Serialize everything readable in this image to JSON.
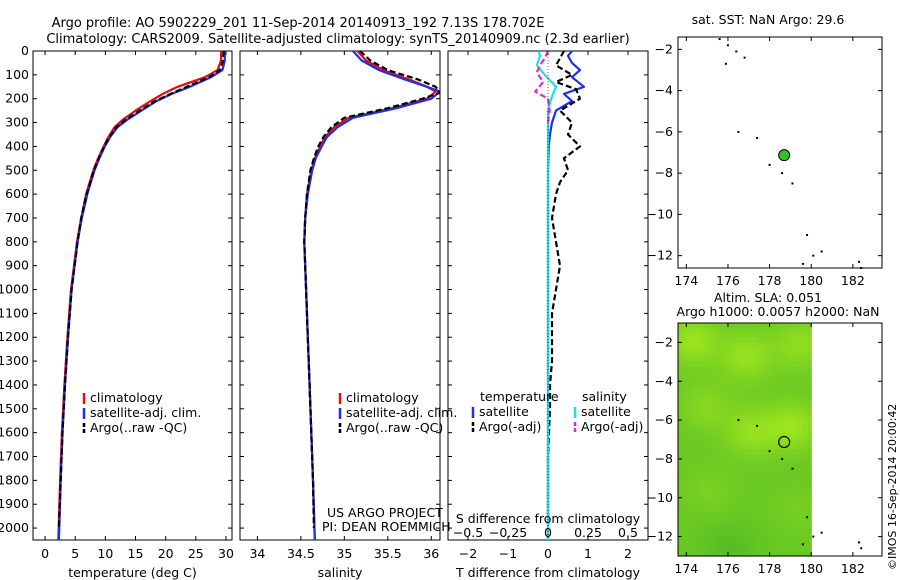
{
  "header": {
    "title_line1": "Argo profile: AO 5902229_201 11-Sep-2014 20140913_192 7.13S 178.702E",
    "title_line2": "Climatology: CARS2009. Satellite-adjusted climatology: synTS_20140909.nc (2.3d earlier)"
  },
  "credit": {
    "line1": "US ARGO PROJECT",
    "line2": "PI: DEAN ROEMMICH"
  },
  "side_stamp": "©IMOS 16-Sep-2014 20:00:42",
  "colors": {
    "climatology": "#e01010",
    "satellite": "#1f2fe8",
    "argo": "#000000",
    "sat_salinity": "#19e3e3",
    "argo_salinity": "#e327d0",
    "float_marker": "#35c022"
  },
  "chart_data": [
    {
      "id": "temperature",
      "type": "line",
      "xlabel": "temperature (deg C)",
      "ylabel": "",
      "xlim": [
        -2,
        31
      ],
      "ylim": [
        2050,
        0
      ],
      "xticks": [
        0,
        5,
        10,
        15,
        20,
        25,
        30
      ],
      "xtick_labels": [
        "0",
        "5",
        "10",
        "15",
        "20",
        "25",
        "30"
      ],
      "yticks": [
        0,
        100,
        200,
        300,
        400,
        500,
        600,
        700,
        800,
        900,
        1000,
        1100,
        1200,
        1300,
        1400,
        1500,
        1600,
        1700,
        1800,
        1900,
        2000
      ],
      "ytick_labels": [
        "0",
        "100",
        "200",
        "300",
        "400",
        "500",
        "600",
        "700",
        "800",
        "900",
        "1000",
        "1100",
        "1200",
        "1300",
        "1400",
        "1500",
        "1600",
        "1700",
        "1800",
        "1900",
        "2000"
      ],
      "legend": {
        "position": "lower-left",
        "entries": [
          {
            "label": "climatology",
            "color": "#e01010",
            "dash": ""
          },
          {
            "label": "satellite-adj. clim.",
            "color": "#1f2fe8",
            "dash": ""
          },
          {
            "label": "Argo(..raw -QC)",
            "color": "#000000",
            "dash": "6,3"
          }
        ]
      },
      "series": [
        {
          "name": "climatology",
          "color": "#e01010",
          "dash": "",
          "depth": [
            0,
            40,
            80,
            110,
            150,
            180,
            210,
            250,
            290,
            320,
            360,
            400,
            450,
            500,
            600,
            700,
            800,
            900,
            1000,
            1200,
            1400,
            1600,
            1800,
            2050
          ],
          "values": [
            29.2,
            29.2,
            28.6,
            26.5,
            22.0,
            19.5,
            17.5,
            15.0,
            12.8,
            11.5,
            10.5,
            9.7,
            8.8,
            8.0,
            6.8,
            6.0,
            5.3,
            4.8,
            4.3,
            3.7,
            3.2,
            2.8,
            2.5,
            2.2
          ]
        },
        {
          "name": "satellite-adj. clim.",
          "color": "#1f2fe8",
          "dash": "",
          "depth": [
            0,
            40,
            80,
            110,
            150,
            180,
            210,
            250,
            290,
            320,
            360,
            400,
            450,
            500,
            600,
            700,
            800,
            900,
            1000,
            1200,
            1400,
            1600,
            1800,
            2050
          ],
          "values": [
            29.8,
            29.8,
            29.4,
            27.5,
            24.0,
            21.0,
            18.5,
            16.0,
            13.5,
            12.0,
            10.8,
            9.9,
            9.0,
            8.2,
            7.0,
            6.1,
            5.4,
            4.9,
            4.4,
            3.8,
            3.3,
            2.9,
            2.6,
            2.3
          ]
        },
        {
          "name": "Argo(..raw -QC)",
          "color": "#000000",
          "dash": "6,3",
          "depth": [
            0,
            40,
            80,
            110,
            150,
            180,
            210,
            250,
            290,
            320,
            360,
            400,
            450,
            500,
            600,
            700,
            800,
            900,
            1000,
            1200,
            1400,
            1600,
            1800,
            2000
          ],
          "values": [
            29.6,
            29.5,
            29.0,
            27.2,
            23.5,
            20.8,
            18.2,
            15.7,
            13.2,
            11.8,
            10.7,
            9.8,
            8.9,
            8.1,
            6.9,
            6.0,
            5.4,
            4.9,
            4.4,
            3.8,
            3.3,
            2.9,
            2.6,
            2.3
          ]
        }
      ]
    },
    {
      "id": "salinity",
      "type": "line",
      "xlabel": "salinity",
      "ylabel": "",
      "xlim": [
        33.8,
        36.1
      ],
      "ylim": [
        2050,
        0
      ],
      "xticks": [
        34,
        34.5,
        35,
        35.5,
        36
      ],
      "xtick_labels": [
        "34",
        "34.5",
        "35",
        "35.5",
        "36"
      ],
      "legend": {
        "position": "lower-right",
        "entries": [
          {
            "label": "climatology",
            "color": "#e01010",
            "dash": ""
          },
          {
            "label": "satellite-adj. clim.",
            "color": "#1f2fe8",
            "dash": ""
          },
          {
            "label": "Argo(..raw -QC)",
            "color": "#000000",
            "dash": "6,3"
          }
        ]
      },
      "series": [
        {
          "name": "climatology",
          "color": "#e01010",
          "dash": "",
          "depth": [
            0,
            40,
            80,
            120,
            150,
            170,
            200,
            240,
            280,
            320,
            360,
            400,
            450,
            500,
            600,
            700,
            800,
            900,
            1000,
            1200,
            1400,
            1600,
            1800,
            2050
          ],
          "values": [
            35.15,
            35.25,
            35.45,
            35.75,
            35.95,
            36.05,
            35.95,
            35.55,
            35.05,
            34.88,
            34.78,
            34.72,
            34.66,
            34.62,
            34.57,
            34.55,
            34.54,
            34.55,
            34.56,
            34.58,
            34.6,
            34.62,
            34.64,
            34.66
          ]
        },
        {
          "name": "satellite-adj. clim.",
          "color": "#1f2fe8",
          "dash": "",
          "depth": [
            0,
            40,
            80,
            120,
            150,
            170,
            200,
            240,
            280,
            320,
            360,
            400,
            450,
            500,
            600,
            700,
            800,
            900,
            1000,
            1200,
            1400,
            1600,
            1800,
            2050
          ],
          "values": [
            35.1,
            35.2,
            35.4,
            35.7,
            35.95,
            36.1,
            36.0,
            35.6,
            35.1,
            34.92,
            34.8,
            34.74,
            34.67,
            34.63,
            34.58,
            34.55,
            34.54,
            34.55,
            34.56,
            34.58,
            34.6,
            34.62,
            34.64,
            34.66
          ]
        },
        {
          "name": "Argo(..raw -QC)",
          "color": "#000000",
          "dash": "6,3",
          "depth": [
            0,
            40,
            80,
            120,
            150,
            175,
            200,
            240,
            280,
            320,
            360,
            400,
            450,
            500,
            600,
            700,
            800,
            900,
            1000,
            1200,
            1400,
            1600,
            1800,
            2000
          ],
          "values": [
            35.18,
            35.3,
            35.5,
            35.85,
            36.05,
            36.1,
            35.9,
            35.5,
            35.0,
            34.85,
            34.76,
            34.7,
            34.65,
            34.61,
            34.57,
            34.55,
            34.54,
            34.55,
            34.56,
            34.58,
            34.6,
            34.62,
            34.64,
            34.65
          ]
        }
      ]
    },
    {
      "id": "difference",
      "type": "line",
      "xlabel": "T difference from climatology",
      "xlabel_top": "S difference from climatology",
      "xlim": [
        -2.5,
        2.5
      ],
      "ylim": [
        2050,
        0
      ],
      "xticks": [
        -2,
        -1,
        0,
        1,
        2
      ],
      "xtick_labels": [
        "−2",
        "−1",
        "0",
        "1",
        "2"
      ],
      "s_ticks": [
        -0.5,
        -0.25,
        0,
        0.25,
        0.5
      ],
      "s_tick_labels": [
        "−0.5",
        "−0.25",
        "0",
        "0.25",
        "0.5"
      ],
      "s_scale": 4,
      "legend": {
        "temperature_header": "temperature",
        "salinity_header": "salinity",
        "temperature_entries": [
          {
            "label": "satellite",
            "color": "#1f2fe8",
            "dash": ""
          },
          {
            "label": "Argo(-adj)",
            "color": "#000000",
            "dash": "6,3"
          }
        ],
        "salinity_entries": [
          {
            "label": "satellite",
            "color": "#19e3e3",
            "dash": ""
          },
          {
            "label": "Argo(-adj)",
            "color": "#e327d0",
            "dash": "6,3"
          }
        ]
      },
      "series": [
        {
          "name": "T satellite",
          "color": "#1f2fe8",
          "dash": "",
          "units": "degC",
          "depth": [
            0,
            20,
            50,
            80,
            110,
            150,
            180,
            210,
            250,
            300,
            350,
            400,
            500,
            700,
            1000,
            1500,
            2050
          ],
          "values": [
            0.6,
            0.5,
            0.6,
            0.8,
            0.6,
            0.9,
            0.4,
            0.6,
            0.2,
            0.1,
            0.05,
            0.02,
            0.0,
            0.0,
            0.0,
            0.0,
            0.0
          ]
        },
        {
          "name": "T Argo(-adj)",
          "color": "#000000",
          "dash": "6,3",
          "units": "degC",
          "depth": [
            0,
            30,
            60,
            100,
            130,
            160,
            200,
            250,
            300,
            350,
            400,
            450,
            500,
            550,
            600,
            700,
            800,
            900,
            1000,
            1100,
            1200,
            1300,
            1400,
            1500,
            1700,
            1900,
            2000
          ],
          "values": [
            0.4,
            0.3,
            0.2,
            0.6,
            0.2,
            0.7,
            0.8,
            0.3,
            0.6,
            0.5,
            0.8,
            0.4,
            0.5,
            0.3,
            0.2,
            0.1,
            0.2,
            0.3,
            0.2,
            0.1,
            0.1,
            0.1,
            0.05,
            0.05,
            0.0,
            0.0,
            0.0
          ]
        },
        {
          "name": "S satellite",
          "color": "#19e3e3",
          "dash": "",
          "units": "psu",
          "depth": [
            0,
            20,
            60,
            100,
            150,
            200,
            250,
            300,
            400,
            500,
            700,
            1000,
            1500,
            2050
          ],
          "values": [
            -0.06,
            -0.05,
            -0.07,
            -0.02,
            0.05,
            0.02,
            0.0,
            0.0,
            0.0,
            0.0,
            0.0,
            0.0,
            0.0,
            0.0
          ]
        },
        {
          "name": "S Argo(-adj)",
          "color": "#e327d0",
          "dash": "6,3",
          "units": "psu",
          "depth": [
            0,
            30,
            60,
            90,
            130,
            170,
            200,
            250,
            300
          ],
          "values": [
            0.0,
            -0.02,
            -0.05,
            -0.07,
            -0.03,
            -0.08,
            0.0,
            0.01,
            0.0
          ]
        }
      ]
    },
    {
      "id": "sst_map",
      "type": "scatter",
      "title": "sat. SST: NaN Argo: 29.6",
      "xlim": [
        173.6,
        183.4
      ],
      "ylim": [
        -12.6,
        -1.4
      ],
      "xticks": [
        174,
        176,
        178,
        180,
        182
      ],
      "xtick_labels": [
        "174",
        "176",
        "178",
        "180",
        "182"
      ],
      "yticks": [
        -2,
        -4,
        -6,
        -8,
        -10,
        -12
      ],
      "ytick_labels": [
        "−2",
        "−4",
        "−6",
        "−8",
        "−10",
        "−12"
      ],
      "float_position": {
        "lon": 178.7,
        "lat": -7.13
      },
      "islands": [
        [
          175.6,
          -1.5
        ],
        [
          176.0,
          -1.8
        ],
        [
          176.4,
          -2.1
        ],
        [
          176.8,
          -2.4
        ],
        [
          175.9,
          -2.7
        ],
        [
          176.5,
          -6.0
        ],
        [
          177.4,
          -6.3
        ],
        [
          178.0,
          -7.6
        ],
        [
          178.6,
          -8.0
        ],
        [
          179.1,
          -8.5
        ],
        [
          179.8,
          -11.0
        ],
        [
          180.5,
          -11.8
        ],
        [
          179.6,
          -12.4
        ],
        [
          182.3,
          -12.3
        ],
        [
          182.4,
          -12.6
        ],
        [
          180.1,
          -12.0
        ]
      ]
    },
    {
      "id": "sla_map",
      "type": "heatmap",
      "title_line1": "Altim. SLA: 0.051",
      "title_line2": "Argo h1000: 0.0057 h2000: NaN",
      "xlim": [
        173.6,
        183.4
      ],
      "ylim": [
        -13.0,
        -1.0
      ],
      "data_lon_max": 180.0,
      "xticks": [
        174,
        176,
        178,
        180,
        182
      ],
      "xtick_labels": [
        "174",
        "176",
        "178",
        "180",
        "182"
      ],
      "yticks": [
        -2,
        -4,
        -6,
        -8,
        -10,
        -12
      ],
      "ytick_labels": [
        "−2",
        "−4",
        "−6",
        "−8",
        "−10",
        "−12"
      ],
      "float_position": {
        "lon": 178.7,
        "lat": -7.13
      },
      "sla_blobs": [
        {
          "lon": 174.2,
          "lat": -1.8,
          "amp": 0.75
        },
        {
          "lon": 176.8,
          "lat": -2.6,
          "amp": 0.7
        },
        {
          "lon": 179.4,
          "lat": -2.0,
          "amp": 0.6
        },
        {
          "lon": 174.8,
          "lat": -5.2,
          "amp": 0.45
        },
        {
          "lon": 177.0,
          "lat": -6.5,
          "amp": 0.65
        },
        {
          "lon": 179.0,
          "lat": -6.2,
          "amp": 0.75
        },
        {
          "lon": 175.0,
          "lat": -9.5,
          "amp": 0.25
        },
        {
          "lon": 179.2,
          "lat": -10.5,
          "amp": 0.2
        },
        {
          "lon": 176.0,
          "lat": -12.5,
          "amp": -0.3
        }
      ],
      "islands": [
        [
          176.5,
          -6.0
        ],
        [
          177.4,
          -6.3
        ],
        [
          178.0,
          -7.6
        ],
        [
          178.6,
          -8.0
        ],
        [
          179.1,
          -8.5
        ],
        [
          179.8,
          -11.0
        ],
        [
          180.5,
          -11.8
        ],
        [
          179.6,
          -12.4
        ],
        [
          182.3,
          -12.3
        ],
        [
          182.4,
          -12.6
        ],
        [
          180.1,
          -12.0
        ]
      ]
    }
  ]
}
